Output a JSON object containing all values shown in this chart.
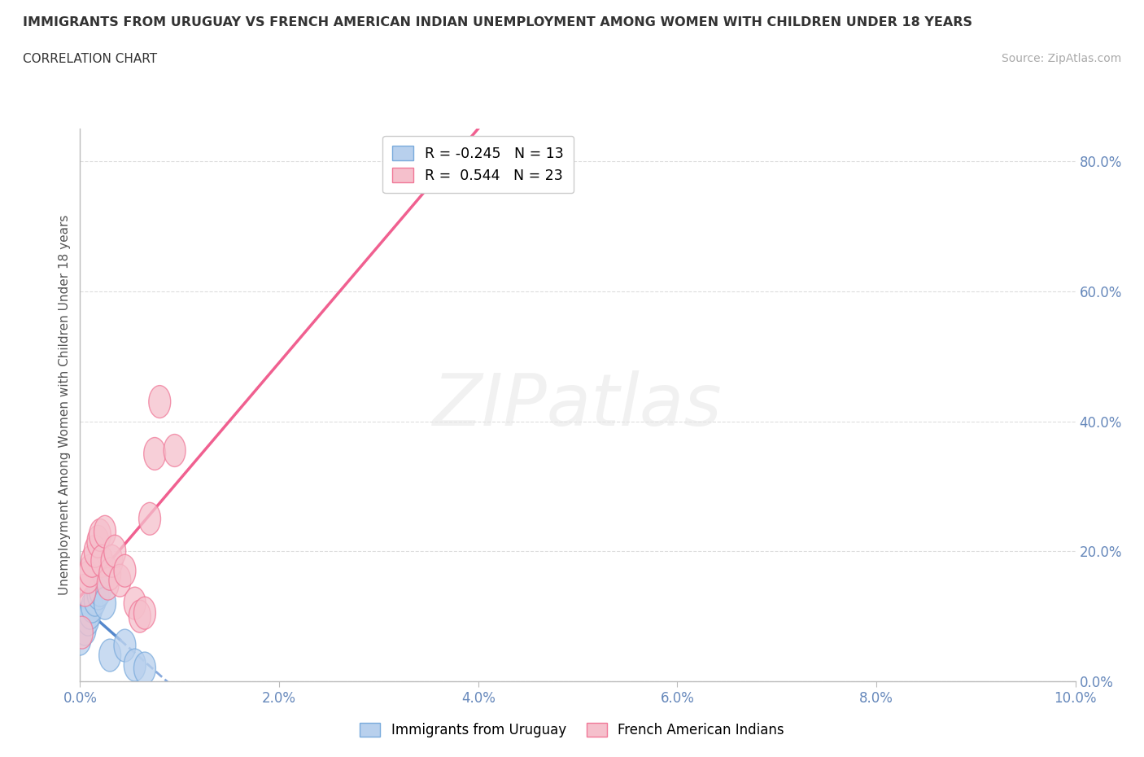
{
  "title": "IMMIGRANTS FROM URUGUAY VS FRENCH AMERICAN INDIAN UNEMPLOYMENT AMONG WOMEN WITH CHILDREN UNDER 18 YEARS",
  "subtitle": "CORRELATION CHART",
  "source": "Source: ZipAtlas.com",
  "xlabel_label": "Immigrants from Uruguay",
  "xlabel2_label": "French American Indians",
  "ylabel": "Unemployment Among Women with Children Under 18 years",
  "r_uruguay": -0.245,
  "n_uruguay": 13,
  "r_french": 0.544,
  "n_french": 23,
  "xlim": [
    0.0,
    0.1
  ],
  "ylim": [
    0.0,
    0.85
  ],
  "ytick_vals": [
    0.0,
    0.2,
    0.4,
    0.6,
    0.8
  ],
  "xtick_vals": [
    0.0,
    0.02,
    0.04,
    0.06,
    0.08,
    0.1
  ],
  "uruguay_x": [
    0.0,
    0.0005,
    0.0008,
    0.001,
    0.0012,
    0.0015,
    0.0018,
    0.002,
    0.0025,
    0.003,
    0.0045,
    0.0055,
    0.0065
  ],
  "uruguay_y": [
    0.065,
    0.08,
    0.095,
    0.105,
    0.115,
    0.125,
    0.135,
    0.14,
    0.12,
    0.04,
    0.055,
    0.025,
    0.02
  ],
  "french_x": [
    0.0002,
    0.0005,
    0.0008,
    0.001,
    0.0012,
    0.0015,
    0.0018,
    0.002,
    0.0022,
    0.0025,
    0.0028,
    0.003,
    0.0032,
    0.0035,
    0.004,
    0.0045,
    0.0055,
    0.006,
    0.0065,
    0.007,
    0.0075,
    0.008,
    0.0095
  ],
  "french_y": [
    0.075,
    0.14,
    0.16,
    0.17,
    0.185,
    0.2,
    0.215,
    0.225,
    0.185,
    0.23,
    0.15,
    0.165,
    0.185,
    0.2,
    0.155,
    0.17,
    0.12,
    0.1,
    0.105,
    0.25,
    0.35,
    0.43,
    0.355
  ],
  "color_uruguay": "#b8d0ed",
  "color_french": "#f5c0cc",
  "edge_uruguay": "#7aabdc",
  "edge_french": "#f07898",
  "line_uruguay_solid": "#5588cc",
  "line_uruguay_dash": "#88aadd",
  "line_french": "#f06090",
  "bg_color": "#ffffff",
  "grid_color": "#dddddd",
  "watermark": "ZIPatlas"
}
